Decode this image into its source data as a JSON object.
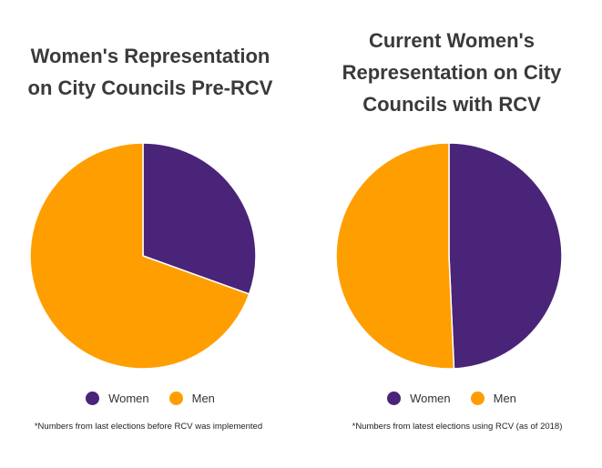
{
  "chart_data": [
    {
      "type": "pie",
      "title_lines": [
        "Women's Representation",
        "on City Councils Pre-RCV"
      ],
      "slices": [
        {
          "label": "Women",
          "value": 30.5,
          "color": "#4a2478"
        },
        {
          "label": "Men",
          "value": 69.5,
          "color": "#ff9e00"
        }
      ],
      "legend": [
        "Women",
        "Men"
      ],
      "legend_placement": "bottom",
      "note": "*Numbers from last elections before RCV was implemented"
    },
    {
      "type": "pie",
      "title_lines": [
        "Current Women's",
        "Representation on City",
        "Councils with RCV"
      ],
      "slices": [
        {
          "label": "Women",
          "value": 49.3,
          "color": "#4a2478"
        },
        {
          "label": "Men",
          "value": 50.7,
          "color": "#ff9e00"
        }
      ],
      "legend": [
        "Women",
        "Men"
      ],
      "legend_placement": "bottom",
      "note": "*Numbers from latest elections using RCV (as of 2018)"
    }
  ]
}
